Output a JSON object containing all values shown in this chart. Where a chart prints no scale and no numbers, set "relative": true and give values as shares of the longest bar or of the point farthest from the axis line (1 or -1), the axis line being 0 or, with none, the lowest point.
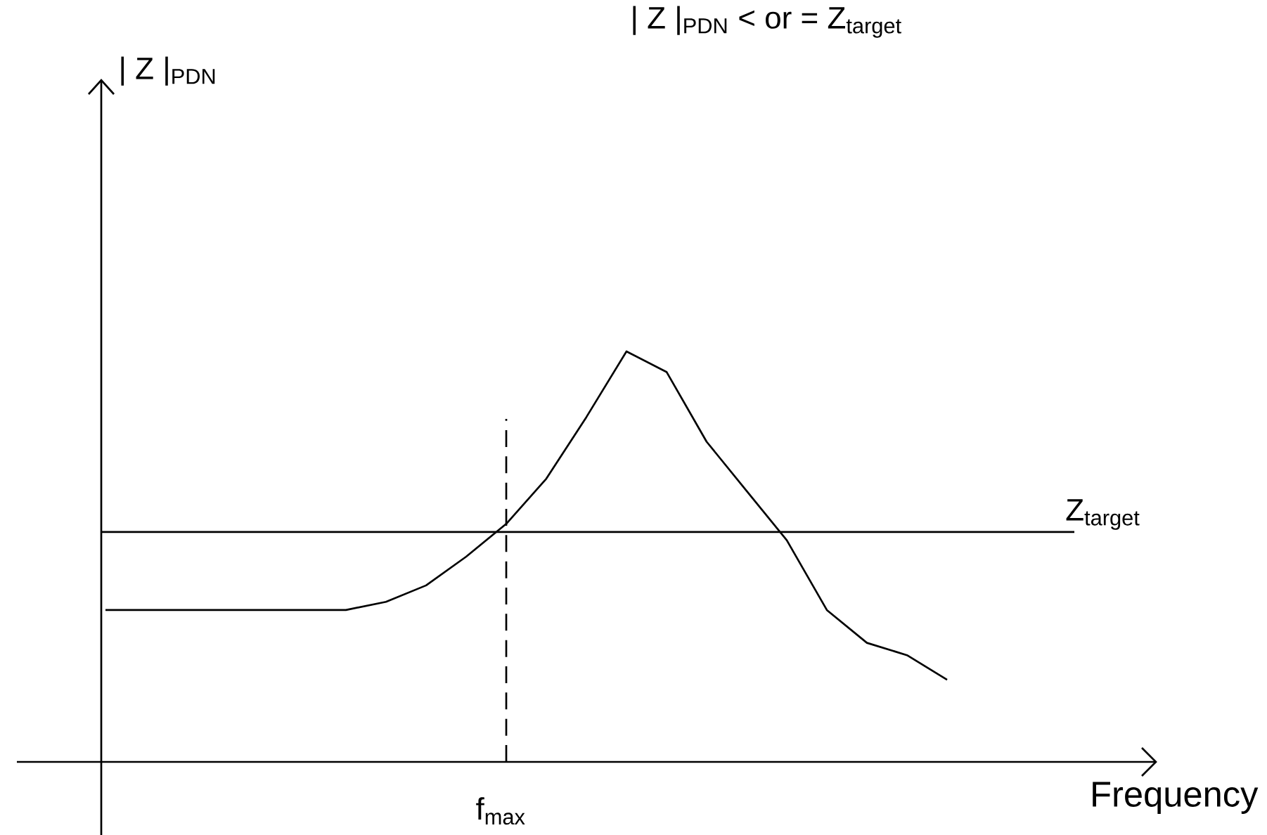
{
  "chart_data": {
    "type": "line",
    "title": "| Z |$_{PDN}$ < or = Z$_{target}$",
    "xlabel": "Frequency",
    "relative": true,
    "annotations": [
      "| Z |$_{PDN}$",
      "f$_{max}$"
    ],
    "categories": [
      null,
      null,
      null,
      null,
      null,
      null,
      null,
      null,
      null,
      null,
      null,
      null,
      null,
      null,
      null,
      null,
      null,
      null,
      null,
      null,
      null,
      null
    ],
    "series": [
      {
        "color": "#000000",
        "values": [
          0.37,
          0.37,
          0.37,
          0.37,
          0.37,
          0.37,
          0.37,
          0.39,
          0.43,
          0.5,
          0.58,
          0.69,
          0.84,
          1.0,
          0.95,
          0.78,
          0.66,
          0.54,
          0.37,
          0.29,
          0.26,
          0.2
        ]
      }
    ],
    "ref_lines": [
      {
        "axis": "y",
        "value": 0.56,
        "label": "Z$_{target}$",
        "line_style": "solid"
      }
    ],
    "marker": "none",
    "line_style": "solid"
  }
}
